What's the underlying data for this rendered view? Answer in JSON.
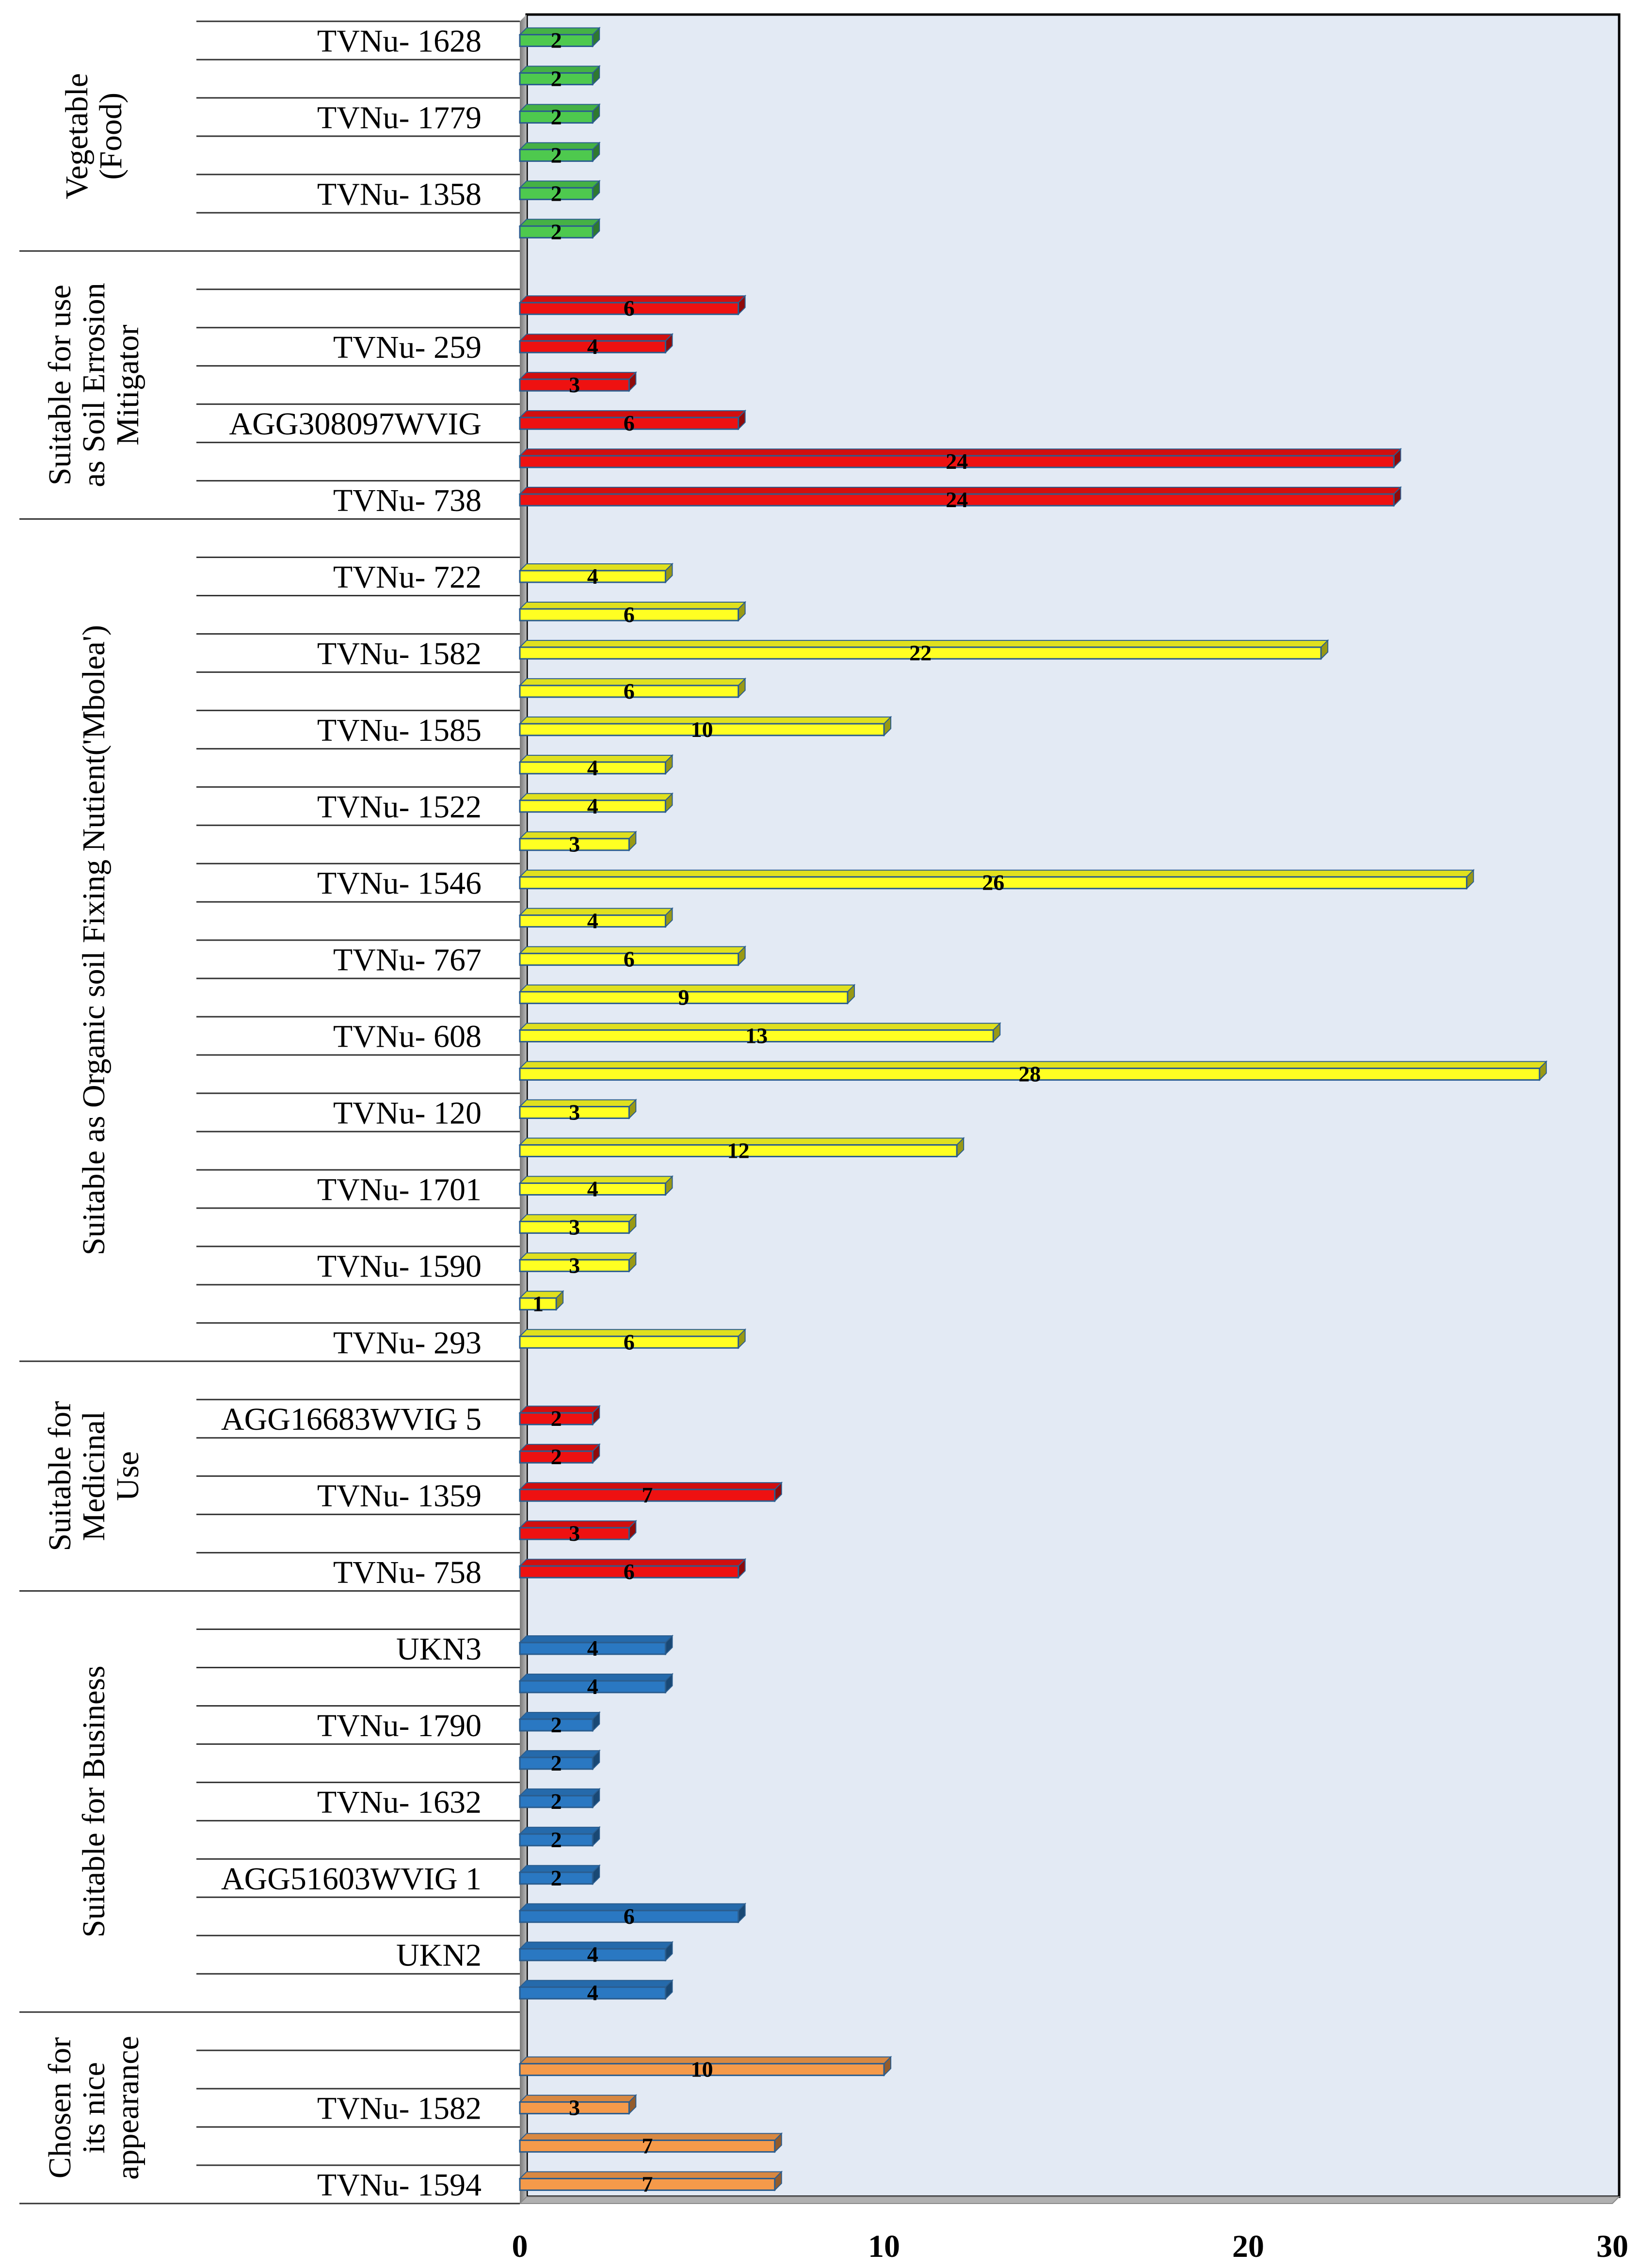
{
  "chart_data": {
    "type": "bar",
    "orientation": "horizontal",
    "title": "",
    "xlabel": "",
    "ylabel": "",
    "xlim": [
      0,
      30
    ],
    "x_ticks": [
      0,
      10,
      20,
      30
    ],
    "grid": false,
    "show_value_labels": true,
    "groups": [
      {
        "name_lines": [
          "Vegetable",
          "(Food)"
        ],
        "color": "#4ec94e",
        "items": [
          {
            "label": "TVNu- 1628",
            "value": 2
          },
          {
            "label": "",
            "value": 2
          },
          {
            "label": "TVNu- 1779",
            "value": 2
          },
          {
            "label": "",
            "value": 2
          },
          {
            "label": "TVNu- 1358",
            "value": 2
          },
          {
            "label": "",
            "value": 2
          }
        ]
      },
      {
        "name_lines": [
          "Suitable for use",
          "as Soil Errosion",
          "Mitigator"
        ],
        "color": "#ee1111",
        "items": [
          {
            "label": "",
            "value": null
          },
          {
            "label": "",
            "value": 6
          },
          {
            "label": "TVNu- 259",
            "value": 4
          },
          {
            "label": "",
            "value": 3
          },
          {
            "label": "AGG308097WVIG",
            "value": 6
          },
          {
            "label": "",
            "value": 24
          },
          {
            "label": "TVNu- 738",
            "value": 24
          }
        ]
      },
      {
        "name_lines": [
          "Suitable as Organic soil Fixing Nutient('Mbolea')"
        ],
        "color": "#ffff22",
        "items": [
          {
            "label": "",
            "value": null
          },
          {
            "label": "TVNu- 722",
            "value": 4
          },
          {
            "label": "",
            "value": 6
          },
          {
            "label": "TVNu- 1582",
            "value": 22
          },
          {
            "label": "",
            "value": 6
          },
          {
            "label": "TVNu- 1585",
            "value": 10
          },
          {
            "label": "",
            "value": 4
          },
          {
            "label": "TVNu- 1522",
            "value": 4
          },
          {
            "label": "",
            "value": 3
          },
          {
            "label": "TVNu- 1546",
            "value": 26
          },
          {
            "label": "",
            "value": 4
          },
          {
            "label": "TVNu- 767",
            "value": 6
          },
          {
            "label": "",
            "value": 9
          },
          {
            "label": "TVNu- 608",
            "value": 13
          },
          {
            "label": "",
            "value": 28
          },
          {
            "label": "TVNu- 120",
            "value": 3
          },
          {
            "label": "",
            "value": 12
          },
          {
            "label": "TVNu- 1701",
            "value": 4
          },
          {
            "label": "",
            "value": 3
          },
          {
            "label": "TVNu- 1590",
            "value": 3
          },
          {
            "label": "",
            "value": 1
          },
          {
            "label": "TVNu- 293",
            "value": 6
          }
        ]
      },
      {
        "name_lines": [
          "Suitable for",
          "Medicinal",
          "Use"
        ],
        "color": "#ee1111",
        "items": [
          {
            "label": "",
            "value": null
          },
          {
            "label": "AGG16683WVIG 5",
            "value": 2
          },
          {
            "label": "",
            "value": 2
          },
          {
            "label": "TVNu- 1359",
            "value": 7
          },
          {
            "label": "",
            "value": 3
          },
          {
            "label": "TVNu- 758",
            "value": 6
          }
        ]
      },
      {
        "name_lines": [
          "Suitable for Business"
        ],
        "color": "#2a78c2",
        "items": [
          {
            "label": "",
            "value": null
          },
          {
            "label": "UKN3",
            "value": 4
          },
          {
            "label": "",
            "value": 4
          },
          {
            "label": "TVNu- 1790",
            "value": 2
          },
          {
            "label": "",
            "value": 2
          },
          {
            "label": "TVNu- 1632",
            "value": 2
          },
          {
            "label": "",
            "value": 2
          },
          {
            "label": "AGG51603WVIG 1",
            "value": 2
          },
          {
            "label": "",
            "value": 6
          },
          {
            "label": "UKN2",
            "value": 4
          },
          {
            "label": "",
            "value": 4
          }
        ]
      },
      {
        "name_lines": [
          "Chosen for",
          "its nice",
          "appearance"
        ],
        "color": "#f59a4a",
        "items": [
          {
            "label": "",
            "value": null
          },
          {
            "label": "",
            "value": 10
          },
          {
            "label": "TVNu- 1582",
            "value": 3
          },
          {
            "label": "",
            "value": 7
          },
          {
            "label": "TVNu- 1594",
            "value": 7
          }
        ]
      }
    ]
  }
}
